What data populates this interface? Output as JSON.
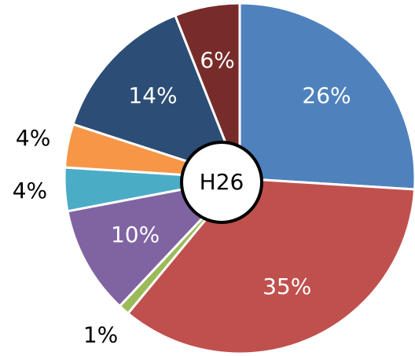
{
  "chart_data": {
    "type": "pie",
    "center_label": "H26",
    "values": [
      26,
      35,
      1,
      10,
      4,
      4,
      14,
      6
    ],
    "value_labels": [
      "26%",
      "35%",
      "1%",
      "10%",
      "4%",
      "4%",
      "14%",
      "6%"
    ],
    "colors": [
      "#4f81bd",
      "#c0504d",
      "#9bbb59",
      "#8064a2",
      "#4bacc6",
      "#f79646",
      "#2c4d75",
      "#772c2a"
    ]
  }
}
